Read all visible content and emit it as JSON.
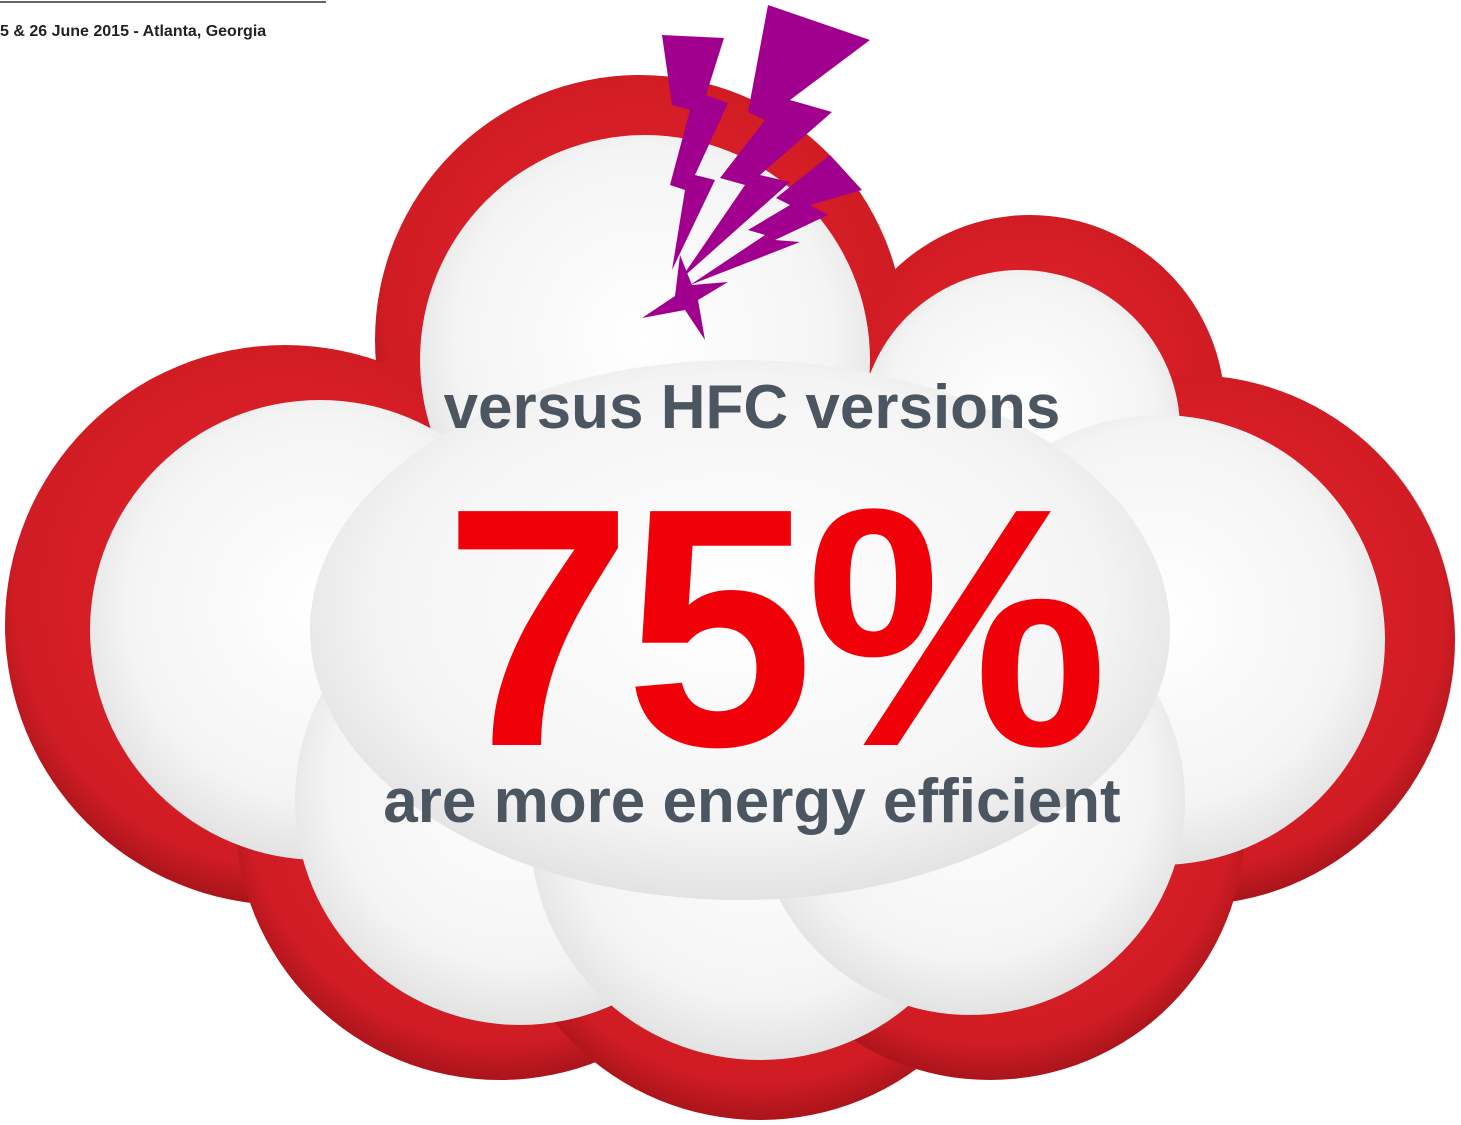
{
  "header": {
    "event": "5 & 26 June 2015 - Atlanta, Georgia"
  },
  "cloud": {
    "top_line": "versus HFC versions",
    "headline": "75%",
    "bottom_line": "are more energy efficient"
  }
}
